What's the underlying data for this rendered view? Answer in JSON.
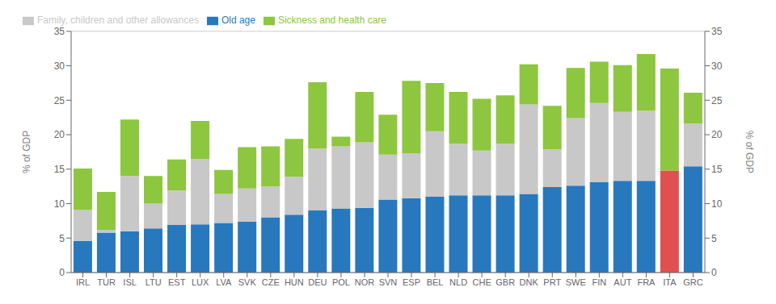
{
  "chart_data": {
    "type": "bar",
    "stacked": true,
    "grid": true,
    "legend": "upper left",
    "ylabel": "% of GDP",
    "y2label": "% of GDP",
    "categories": [
      "IRL",
      "TUR",
      "ISL",
      "LTU",
      "EST",
      "LUX",
      "LVA",
      "SVK",
      "CZE",
      "HUN",
      "DEU",
      "POL",
      "NOR",
      "SVN",
      "ESP",
      "BEL",
      "NLD",
      "CHE",
      "GBR",
      "DNK",
      "PRT",
      "SWE",
      "FIN",
      "AUT",
      "FRA",
      "ITA",
      "GRC"
    ],
    "ylim": [
      0,
      35
    ],
    "yticks": [
      0,
      5,
      10,
      15,
      20,
      25,
      30,
      35
    ],
    "y2lim": [
      0,
      35
    ],
    "y2ticks": [
      0,
      5,
      10,
      15,
      20,
      25,
      30,
      35
    ],
    "series": [
      {
        "name": "Old age",
        "color": "#2878BE",
        "colors": [
          "#2878BE",
          "#2878BE",
          "#2878BE",
          "#2878BE",
          "#2878BE",
          "#2878BE",
          "#2878BE",
          "#2878BE",
          "#2878BE",
          "#2878BE",
          "#2878BE",
          "#2878BE",
          "#2878BE",
          "#2878BE",
          "#2878BE",
          "#2878BE",
          "#2878BE",
          "#2878BE",
          "#2878BE",
          "#2878BE",
          "#2878BE",
          "#2878BE",
          "#2878BE",
          "#2878BE",
          "#2878BE",
          "#E05050",
          "#2878BE"
        ],
        "values": [
          4.6,
          5.8,
          6.0,
          6.4,
          6.9,
          7.0,
          7.2,
          7.4,
          8.0,
          8.4,
          9.0,
          9.3,
          9.4,
          10.6,
          10.8,
          11.0,
          11.2,
          11.2,
          11.2,
          11.4,
          12.4,
          12.6,
          13.1,
          13.3,
          13.3,
          14.8,
          15.4
        ]
      },
      {
        "name": "Family, children and other allowances",
        "color": "#C8C8C8",
        "values": [
          4.5,
          0.4,
          8.0,
          3.6,
          5.0,
          9.5,
          4.2,
          4.8,
          4.5,
          5.5,
          9.0,
          9.0,
          9.5,
          6.5,
          6.5,
          9.5,
          7.5,
          6.5,
          7.5,
          13.0,
          5.5,
          9.8,
          11.5,
          10.0,
          10.2,
          0.0,
          6.2
        ]
      },
      {
        "name": "Sickness and health care",
        "color": "#8DC63F",
        "values": [
          6.0,
          5.5,
          8.2,
          4.0,
          4.5,
          5.5,
          3.5,
          6.0,
          5.8,
          5.5,
          9.6,
          1.4,
          7.3,
          5.8,
          10.5,
          7.0,
          7.5,
          7.5,
          7.0,
          5.8,
          6.3,
          7.3,
          6.0,
          6.8,
          8.2,
          14.8,
          4.5
        ]
      }
    ]
  }
}
